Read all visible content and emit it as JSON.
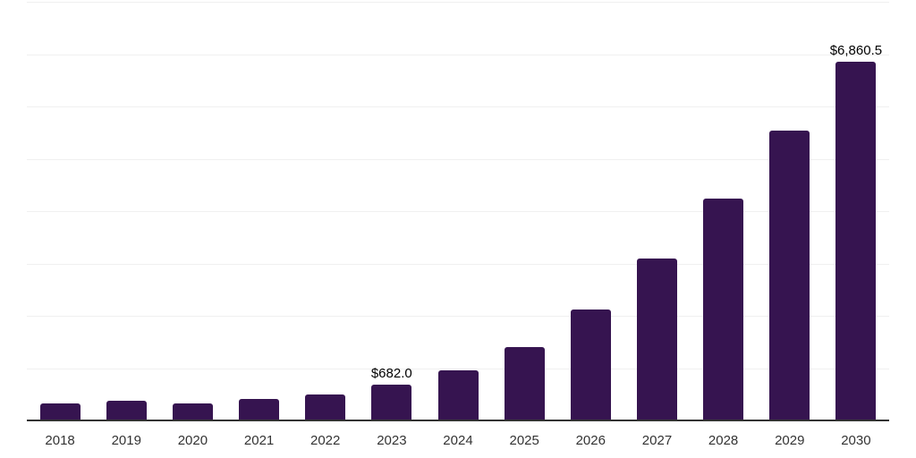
{
  "chart_data": {
    "type": "bar",
    "categories": [
      "2018",
      "2019",
      "2020",
      "2021",
      "2022",
      "2023",
      "2024",
      "2025",
      "2026",
      "2027",
      "2028",
      "2029",
      "2030"
    ],
    "values": [
      325,
      375,
      325,
      410,
      500,
      682.0,
      955,
      1395,
      2120,
      3095,
      4245,
      5545,
      6860.5
    ],
    "annotations": [
      {
        "index": 5,
        "text": "$682.0"
      },
      {
        "index": 12,
        "text": "$6,860.5"
      }
    ],
    "title": "",
    "xlabel": "",
    "ylabel": "",
    "ylim": [
      0,
      8000
    ],
    "grid_step": 1000,
    "grid": true,
    "y_tick_labels_visible": false,
    "legend": false
  },
  "colors": {
    "background": "#ffffff",
    "bar": "#361450",
    "gridline": "#f0f0f0",
    "axis_line": "#333333",
    "tick_label": "#333333",
    "data_label": "#000000"
  }
}
